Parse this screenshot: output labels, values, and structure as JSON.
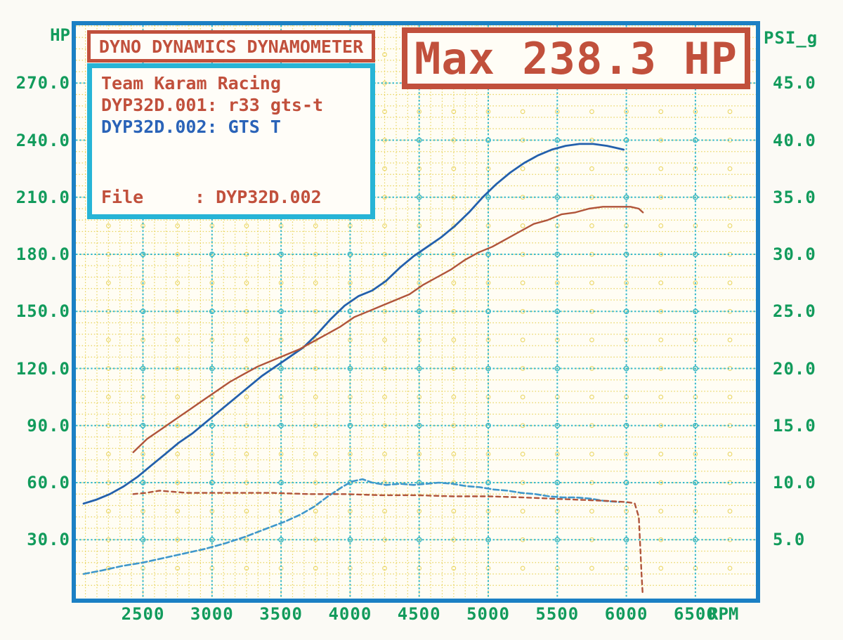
{
  "header": {
    "brand_box_text": "DYNO DYNAMICS DYNAMOMETER",
    "max_box_text": "Max 238.3 HP"
  },
  "info_box": {
    "team": "Team Karam Racing",
    "run1": "DYP32D.001: r33 gts-t",
    "run2": "DYP32D.002: GTS T",
    "file_label": "File",
    "file_value": ": DYP32D.002"
  },
  "colors": {
    "red": "#c1503c",
    "green": "#129b5c",
    "blue_text": "#2a63b8",
    "cyan_border": "#27b4d6",
    "plot_border": "#1b80c4",
    "grid_yellow": "#e6cf4b",
    "grid_cyan": "#38b9cc",
    "curve_power_002": "#2360ac",
    "curve_power_001": "#b0543a",
    "curve_boost_002": "#3e97cb",
    "curve_boost_001": "#b0543a"
  },
  "chart_data": {
    "type": "line",
    "title": "Max 238.3 HP",
    "xlabel": "RPM",
    "ylabel_left": "HP",
    "ylabel_right": "PSI_g",
    "xlim": [
      2010,
      6940
    ],
    "ylim_left": [
      0,
      300
    ],
    "ylim_right": [
      0,
      50
    ],
    "grid": "fine yellow dotted grid with cyan dotted major lines every 500 RPM / 30 HP / 5 PSI",
    "legend_position": "info box top-left",
    "x_ticks": {
      "values": [
        2500,
        3000,
        3500,
        4000,
        4500,
        5000,
        5500,
        6000,
        6500
      ],
      "labels": [
        "2500",
        "3000",
        "3500",
        "4000",
        "4500",
        "5000",
        "5500",
        "6000",
        "6500"
      ]
    },
    "y_ticks_left": {
      "values": [
        270,
        240,
        210,
        180,
        150,
        120,
        90,
        60,
        30
      ],
      "labels": [
        "270.0",
        "240.0",
        "210.0",
        "180.0",
        "150.0",
        "120.0",
        "90.0",
        "60.0",
        "30.0"
      ]
    },
    "y_ticks_right": {
      "values": [
        45,
        40,
        35,
        30,
        25,
        20,
        15,
        10,
        5
      ],
      "labels": [
        "45.0",
        "40.0",
        "35.0",
        "30.0",
        "25.0",
        "20.0",
        "15.0",
        "10.0",
        "5.0"
      ]
    },
    "series": [
      {
        "name": "power-DYP32D.002-GTS-T",
        "axis": "left",
        "unit": "HP",
        "style": "solid",
        "color_key": "curve_power_002",
        "width": 2.8,
        "max_value": 238.3,
        "points": [
          [
            2070,
            49
          ],
          [
            2160,
            51
          ],
          [
            2260,
            54
          ],
          [
            2360,
            58
          ],
          [
            2460,
            63
          ],
          [
            2560,
            69
          ],
          [
            2660,
            75
          ],
          [
            2760,
            81
          ],
          [
            2860,
            86
          ],
          [
            2960,
            92
          ],
          [
            3060,
            98
          ],
          [
            3160,
            104
          ],
          [
            3260,
            110
          ],
          [
            3360,
            116
          ],
          [
            3460,
            121
          ],
          [
            3560,
            126
          ],
          [
            3660,
            131
          ],
          [
            3760,
            138
          ],
          [
            3860,
            146
          ],
          [
            3960,
            153
          ],
          [
            4060,
            158
          ],
          [
            4160,
            161
          ],
          [
            4260,
            166
          ],
          [
            4360,
            173
          ],
          [
            4460,
            179
          ],
          [
            4560,
            184
          ],
          [
            4660,
            189
          ],
          [
            4760,
            195
          ],
          [
            4860,
            202
          ],
          [
            4960,
            210
          ],
          [
            5060,
            217
          ],
          [
            5160,
            223
          ],
          [
            5260,
            228
          ],
          [
            5360,
            232
          ],
          [
            5460,
            235
          ],
          [
            5560,
            237
          ],
          [
            5660,
            238
          ],
          [
            5760,
            238
          ],
          [
            5810,
            237.5
          ],
          [
            5860,
            237
          ],
          [
            5920,
            236
          ],
          [
            5980,
            235
          ]
        ]
      },
      {
        "name": "power-DYP32D.001-r33-gts-t",
        "axis": "left",
        "unit": "HP",
        "style": "solid",
        "color_key": "curve_power_001",
        "width": 2.4,
        "max_value": 205,
        "points": [
          [
            2430,
            76
          ],
          [
            2530,
            83
          ],
          [
            2630,
            88
          ],
          [
            2730,
            93
          ],
          [
            2830,
            98
          ],
          [
            2930,
            103
          ],
          [
            3030,
            108
          ],
          [
            3130,
            113
          ],
          [
            3230,
            117
          ],
          [
            3330,
            121
          ],
          [
            3430,
            124
          ],
          [
            3530,
            127
          ],
          [
            3630,
            130
          ],
          [
            3730,
            134
          ],
          [
            3830,
            138
          ],
          [
            3930,
            142
          ],
          [
            4030,
            147
          ],
          [
            4130,
            150
          ],
          [
            4230,
            153
          ],
          [
            4330,
            156
          ],
          [
            4430,
            159
          ],
          [
            4530,
            164
          ],
          [
            4630,
            168
          ],
          [
            4730,
            172
          ],
          [
            4830,
            177
          ],
          [
            4930,
            181
          ],
          [
            5030,
            184
          ],
          [
            5130,
            188
          ],
          [
            5230,
            192
          ],
          [
            5330,
            196
          ],
          [
            5430,
            198
          ],
          [
            5530,
            201
          ],
          [
            5630,
            202
          ],
          [
            5730,
            204
          ],
          [
            5830,
            205
          ],
          [
            5930,
            205
          ],
          [
            6030,
            205
          ],
          [
            6090,
            204
          ],
          [
            6120,
            202
          ]
        ]
      },
      {
        "name": "boost-DYP32D.002",
        "axis": "right",
        "unit": "PSI_g",
        "style": "dashed",
        "color_key": "curve_boost_002",
        "width": 2.6,
        "dash": "8 4",
        "points": [
          [
            2070,
            2.0
          ],
          [
            2200,
            2.3
          ],
          [
            2350,
            2.7
          ],
          [
            2500,
            3.0
          ],
          [
            2650,
            3.4
          ],
          [
            2800,
            3.8
          ],
          [
            2950,
            4.2
          ],
          [
            3100,
            4.7
          ],
          [
            3250,
            5.3
          ],
          [
            3400,
            6.0
          ],
          [
            3530,
            6.6
          ],
          [
            3640,
            7.2
          ],
          [
            3740,
            7.9
          ],
          [
            3840,
            8.8
          ],
          [
            3940,
            9.6
          ],
          [
            4010,
            10.1
          ],
          [
            4090,
            10.3
          ],
          [
            4160,
            10.0
          ],
          [
            4260,
            9.8
          ],
          [
            4360,
            9.9
          ],
          [
            4460,
            9.8
          ],
          [
            4560,
            9.9
          ],
          [
            4640,
            10.0
          ],
          [
            4740,
            9.9
          ],
          [
            4840,
            9.7
          ],
          [
            4940,
            9.6
          ],
          [
            5040,
            9.4
          ],
          [
            5140,
            9.3
          ],
          [
            5240,
            9.1
          ],
          [
            5340,
            9.0
          ],
          [
            5440,
            8.8
          ],
          [
            5540,
            8.7
          ],
          [
            5640,
            8.7
          ],
          [
            5740,
            8.6
          ],
          [
            5840,
            8.4
          ],
          [
            5950,
            8.3
          ]
        ]
      },
      {
        "name": "boost-DYP32D.001",
        "axis": "right",
        "unit": "PSI_g",
        "style": "dashed",
        "color_key": "curve_boost_001",
        "width": 2.4,
        "dash": "6 5",
        "points": [
          [
            2430,
            9.0
          ],
          [
            2520,
            9.1
          ],
          [
            2620,
            9.3
          ],
          [
            2720,
            9.2
          ],
          [
            2820,
            9.1
          ],
          [
            2960,
            9.1
          ],
          [
            3200,
            9.1
          ],
          [
            3440,
            9.1
          ],
          [
            3700,
            9.0
          ],
          [
            3960,
            9.0
          ],
          [
            4220,
            8.9
          ],
          [
            4480,
            8.9
          ],
          [
            4740,
            8.8
          ],
          [
            5000,
            8.8
          ],
          [
            5260,
            8.7
          ],
          [
            5460,
            8.6
          ],
          [
            5660,
            8.5
          ],
          [
            5860,
            8.4
          ],
          [
            6000,
            8.3
          ],
          [
            6060,
            8.2
          ],
          [
            6090,
            7.0
          ],
          [
            6100,
            4.5
          ],
          [
            6110,
            2.0
          ],
          [
            6118,
            0.3
          ]
        ]
      }
    ]
  }
}
